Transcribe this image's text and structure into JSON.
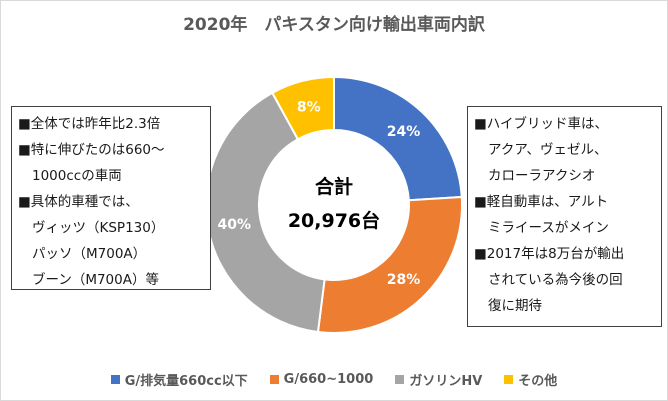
{
  "chart_data": {
    "type": "pie",
    "variant": "donut",
    "title": "2020年　パキスタン向け輸出車両内訳",
    "center_label": "合計",
    "center_value": "20,976台",
    "slices": [
      {
        "name": "G/排気量660cc以下",
        "value": 24,
        "label": "24%",
        "color": "#4472c4"
      },
      {
        "name": "G/660~1000",
        "value": 28,
        "label": "28%",
        "color": "#ed7d31"
      },
      {
        "name": "ガソリンHV",
        "value": 40,
        "label": "40%",
        "color": "#a5a5a5"
      },
      {
        "name": "その他",
        "value": 8,
        "label": "8%",
        "color": "#ffc000"
      }
    ],
    "legend_position": "bottom"
  },
  "notes_left": [
    "■全体では昨年比2.3倍",
    "■特に伸びたのは660～",
    "1000ccの車両",
    "■具体的車種では、",
    "ヴィッツ（KSP130）",
    "パッソ（M700A）",
    "ブーン（M700A）等"
  ],
  "notes_right": [
    "■ハイブリッド車は、",
    "アクア、ヴェゼル、",
    "カローラアクシオ",
    "■軽自動車は、アルト",
    "ミライースがメイン",
    "■2017年は8万台が輸出",
    "されている為今後の回",
    "復に期待"
  ]
}
